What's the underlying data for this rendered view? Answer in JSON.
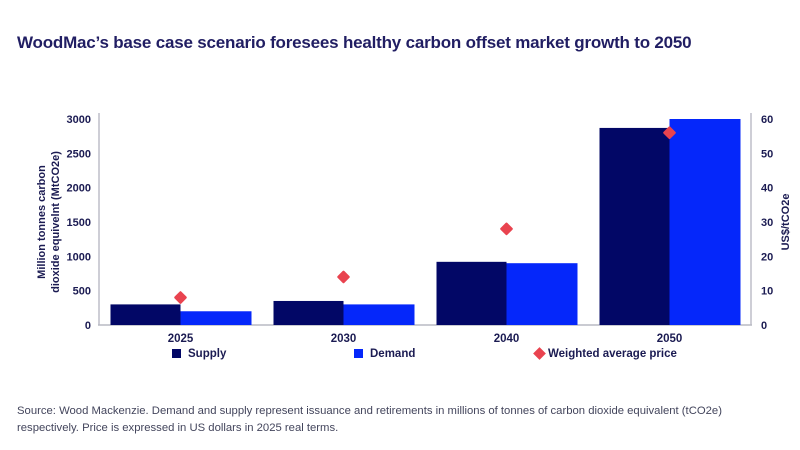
{
  "title": "WoodMac’s base case scenario foresees healthy carbon offset market growth to 2050",
  "colors": {
    "supply": "#020766",
    "demand": "#0527fa",
    "price": "#e9434f",
    "title_text": "#211e63",
    "axis_text": "#1b1b52",
    "axis_line": "#b9bac4",
    "source_text": "#43455c",
    "background": "#ffffff"
  },
  "chart_data": {
    "type": "bar",
    "categories": [
      "2025",
      "2030",
      "2040",
      "2050"
    ],
    "series": [
      {
        "name": "Supply",
        "values": [
          300,
          350,
          920,
          2870
        ]
      },
      {
        "name": "Demand",
        "values": [
          200,
          300,
          900,
          3000
        ]
      }
    ],
    "price_series": {
      "name": "Weighted average price",
      "values": [
        8,
        14,
        28,
        56
      ]
    },
    "ylabel_left_lines": [
      "Million tonnes carbon",
      "dioxide equivelnt (MtCO2e)"
    ],
    "ylabel_right": "US$/tCO2e",
    "yticks_left": [
      0,
      500,
      1000,
      1500,
      2000,
      2500,
      3000
    ],
    "yticks_right": [
      0,
      10,
      20,
      30,
      40,
      50,
      60
    ],
    "ylim_left": [
      0,
      3000
    ],
    "ylim_right": [
      0,
      60
    ],
    "xlabel": "",
    "grid": false,
    "legend_position": "bottom"
  },
  "legend": {
    "supply_label": "Supply",
    "demand_label": "Demand",
    "price_label": "Weighted average price"
  },
  "source": "Source: Wood Mackenzie. Demand and supply represent issuance and retirements in millions of tonnes of carbon dioxide equivalent (tCO2e) respectively. Price is expressed in US dollars in 2025 real terms."
}
